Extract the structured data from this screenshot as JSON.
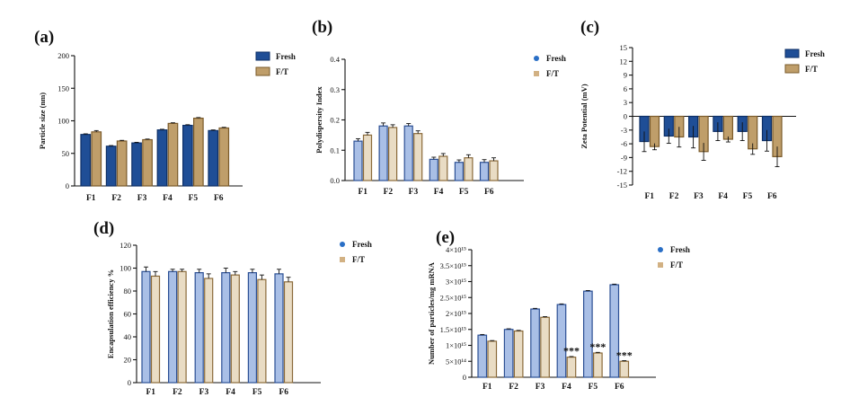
{
  "colors": {
    "fresh_dark": "#1f4e96",
    "fresh_dark_stroke": "#0d2f66",
    "ft_dark": "#bf9e6a",
    "ft_dark_stroke": "#7a5a2a",
    "fresh_light": "#a9bfe6",
    "fresh_light_stroke": "#2b4f94",
    "ft_light": "#e9dcc4",
    "ft_light_stroke": "#8a6a3a",
    "fresh_dot": "#2a6fc6",
    "ft_dot": "#d2b183"
  },
  "chart_data": [
    {
      "id": "a",
      "letter": "(a)",
      "type": "bar",
      "style": "dark",
      "categories": [
        "F1",
        "F2",
        "F3",
        "F4",
        "F5",
        "F6"
      ],
      "series": [
        {
          "name": "Fresh",
          "values": [
            79,
            61,
            66,
            86,
            93,
            85
          ],
          "errors": [
            1,
            1,
            1,
            1,
            1,
            1
          ]
        },
        {
          "name": "F/T",
          "values": [
            83,
            69,
            71,
            96,
            104,
            89
          ],
          "errors": [
            2,
            1,
            1,
            1,
            1,
            1
          ]
        }
      ],
      "ylabel": "Particle size (nm)",
      "ylim": [
        0,
        200
      ],
      "yticks": [
        0,
        50,
        100,
        150,
        200
      ],
      "ytick_labels": [
        "0",
        "50",
        "100",
        "150",
        "200"
      ],
      "legend": [
        "Fresh",
        "F/T"
      ],
      "legend_style": "box",
      "annotations": []
    },
    {
      "id": "b",
      "letter": "(b)",
      "type": "bar",
      "style": "light",
      "categories": [
        "F1",
        "F2",
        "F3",
        "F4",
        "F5",
        "F6"
      ],
      "series": [
        {
          "name": "Fresh",
          "values": [
            0.13,
            0.18,
            0.18,
            0.07,
            0.06,
            0.06
          ],
          "errors": [
            0.008,
            0.01,
            0.008,
            0.007,
            0.008,
            0.009
          ]
        },
        {
          "name": "F/T",
          "values": [
            0.15,
            0.175,
            0.155,
            0.08,
            0.075,
            0.065
          ],
          "errors": [
            0.009,
            0.009,
            0.009,
            0.009,
            0.01,
            0.01
          ]
        }
      ],
      "ylabel": "Polydispersity Index",
      "ylim": [
        0,
        0.4
      ],
      "yticks": [
        0,
        0.1,
        0.2,
        0.3,
        0.4
      ],
      "ytick_labels": [
        "0.0",
        "0.1",
        "0.2",
        "0.3",
        "0.4"
      ],
      "legend": [
        "Fresh",
        "F/T"
      ],
      "legend_style": "dot",
      "annotations": []
    },
    {
      "id": "c",
      "letter": "(c)",
      "type": "bar",
      "style": "dark",
      "categories": [
        "F1",
        "F2",
        "F3",
        "F4",
        "F5",
        "F6"
      ],
      "series": [
        {
          "name": "Fresh",
          "values": [
            -5.5,
            -4.3,
            -4.5,
            -3.3,
            -3.3,
            -5.3
          ],
          "errors": [
            2.2,
            1.6,
            2.4,
            2,
            2,
            2.3
          ]
        },
        {
          "name": "F/T",
          "values": [
            -6.6,
            -4.5,
            -7.7,
            -5.0,
            -7.1,
            -8.8
          ],
          "errors": [
            0.7,
            2.2,
            1.9,
            0.6,
            1.2,
            2.2
          ]
        }
      ],
      "ylabel": "Zeta Potential (mV)",
      "ylim": [
        -15,
        15
      ],
      "yticks": [
        -15,
        -12,
        -9,
        -6,
        -3,
        0,
        3,
        6,
        9,
        12,
        15
      ],
      "ytick_labels": [
        "-15",
        "-12",
        "-9",
        "-6",
        "-3",
        "0",
        "3",
        "6",
        "9",
        "12",
        "15"
      ],
      "legend": [
        "Fresh",
        "F/T"
      ],
      "legend_style": "box",
      "annotations": []
    },
    {
      "id": "d",
      "letter": "(d)",
      "type": "bar",
      "style": "light",
      "categories": [
        "F1",
        "F2",
        "F3",
        "F4",
        "F5",
        "F6"
      ],
      "series": [
        {
          "name": "Fresh",
          "values": [
            97,
            97,
            96,
            96,
            96,
            95
          ],
          "errors": [
            4,
            2,
            3,
            4,
            3,
            4
          ]
        },
        {
          "name": "F/T",
          "values": [
            93,
            97,
            91,
            94,
            90,
            88
          ],
          "errors": [
            4,
            2,
            4,
            3,
            4,
            4
          ]
        }
      ],
      "ylabel": "Encapsulation efficiency %",
      "ylim": [
        0,
        120
      ],
      "yticks": [
        0,
        20,
        40,
        60,
        80,
        100,
        120
      ],
      "ytick_labels": [
        "0",
        "20",
        "40",
        "60",
        "80",
        "100",
        "120"
      ],
      "legend": [
        "Fresh",
        "F/T"
      ],
      "legend_style": "dot",
      "annotations": []
    },
    {
      "id": "e",
      "letter": "(e)",
      "type": "bar",
      "style": "light",
      "categories": [
        "F1",
        "F2",
        "F3",
        "F4",
        "F5",
        "F6"
      ],
      "series": [
        {
          "name": "Fresh",
          "values": [
            1.32,
            1.5,
            2.14,
            2.28,
            2.7,
            2.9
          ],
          "errors": [
            0.02,
            0.02,
            0.02,
            0.02,
            0.02,
            0.02
          ]
        },
        {
          "name": "F/T",
          "values": [
            1.13,
            1.45,
            1.88,
            0.63,
            0.76,
            0.5
          ],
          "errors": [
            0.02,
            0.02,
            0.02,
            0.02,
            0.02,
            0.02
          ]
        }
      ],
      "ylabel": "Number of particles/mg mRNA",
      "ylim": [
        0,
        4
      ],
      "yticks": [
        0,
        0.5,
        1,
        1.5,
        2,
        2.5,
        3,
        3.5,
        4
      ],
      "ytick_labels": [
        "0",
        "5×10¹⁴",
        "1×10¹⁵",
        "1.5×10¹⁵",
        "2×10¹⁵",
        "2.5×10¹⁵",
        "3×10¹⁵",
        "3.5×10¹⁵",
        "4×10¹⁵"
      ],
      "y_unit": "1e15 particles",
      "legend": [
        "Fresh",
        "F/T"
      ],
      "legend_style": "dot",
      "annotations": [
        {
          "category": "F4",
          "text": "***"
        },
        {
          "category": "F5",
          "text": "***"
        },
        {
          "category": "F6",
          "text": "***"
        }
      ]
    }
  ]
}
